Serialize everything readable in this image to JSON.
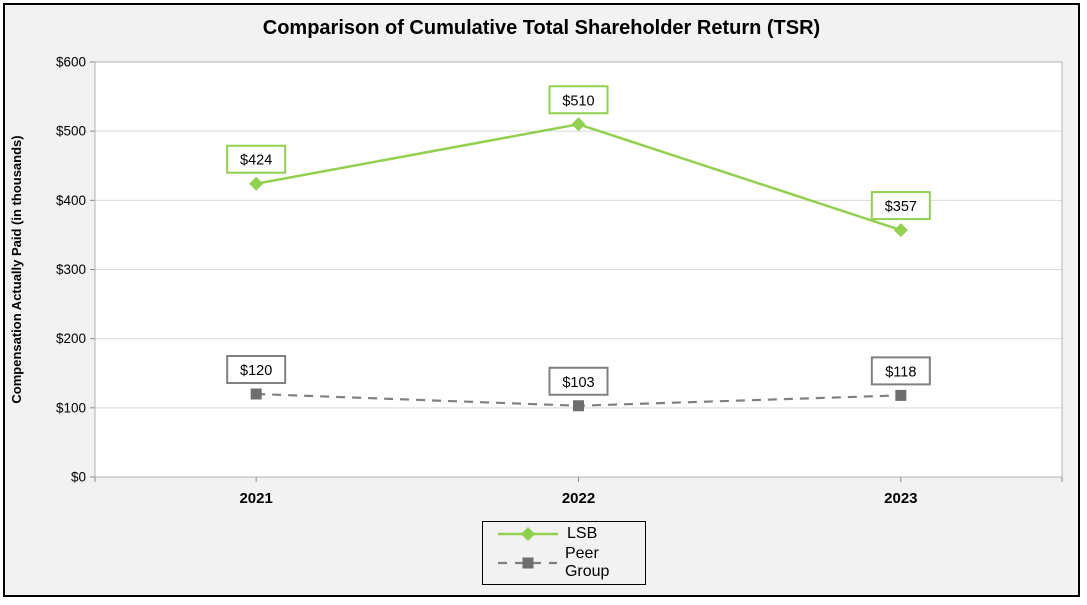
{
  "chart_data": {
    "type": "line",
    "title": "Comparison of Cumulative Total Shareholder Return (TSR)",
    "ylabel": "Compensation Actually Paid (in thousands)",
    "xlabel": "",
    "categories": [
      "2021",
      "2022",
      "2023"
    ],
    "series": [
      {
        "name": "LSB",
        "values": [
          424,
          510,
          357
        ],
        "data_labels": [
          "$424",
          "$510",
          "$357"
        ],
        "color": "#92D050",
        "line_style": "solid",
        "marker": "diamond"
      },
      {
        "name": "Peer Group",
        "values": [
          120,
          103,
          118
        ],
        "data_labels": [
          "$120",
          "$103",
          "$118"
        ],
        "color": "#808080",
        "marker_color": "#6e6e6e",
        "line_style": "dashed",
        "marker": "square"
      }
    ],
    "ylim": [
      0,
      600
    ],
    "ytick_step": 100,
    "ytick_labels": [
      "$0",
      "$100",
      "$200",
      "$300",
      "$400",
      "$500",
      "$600"
    ],
    "grid": true,
    "legend_position": "bottom-center"
  },
  "colors": {
    "background": "#f2f2f2",
    "plot_background": "#ffffff",
    "gridline": "#d9d9d9",
    "plot_border": "#b3b3b3",
    "tick": "#8c8c8c",
    "frame_border": "#000000",
    "text": "#000000",
    "lsb_green": "#92D050",
    "peer_gray": "#808080"
  }
}
